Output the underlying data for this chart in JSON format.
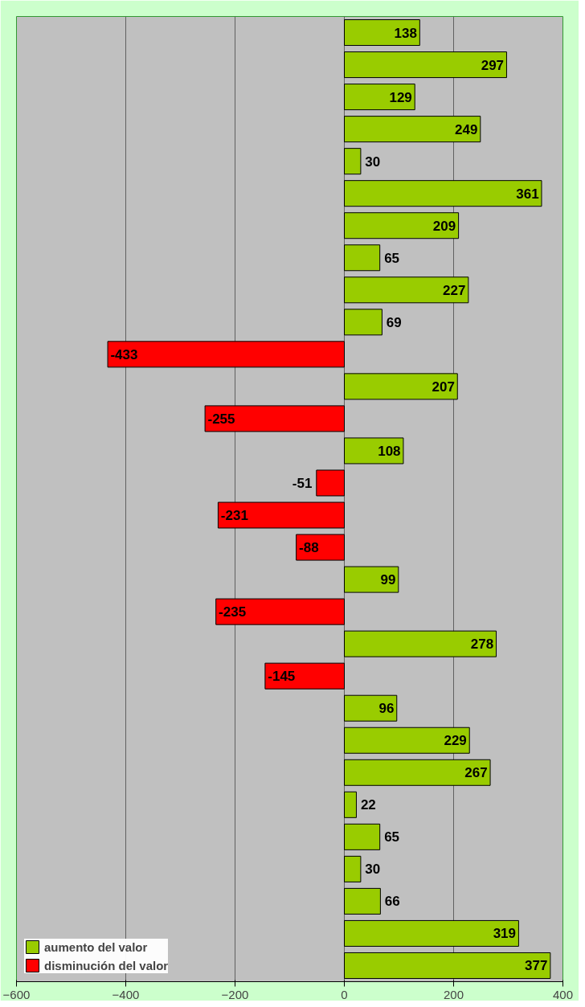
{
  "chart_data": {
    "type": "bar",
    "orientation": "horizontal",
    "data_labels": true,
    "categories": [
      null,
      null,
      null,
      null,
      null,
      null,
      null,
      null,
      null,
      null,
      null,
      null,
      null,
      null,
      null,
      null,
      null,
      null,
      null,
      null,
      null,
      null,
      null,
      null,
      null,
      null,
      null,
      null,
      null,
      null
    ],
    "series": [
      {
        "name": "aumento del valor",
        "color": "#99cc00",
        "values": [
          138,
          297,
          129,
          249,
          30,
          361,
          209,
          65,
          227,
          69,
          null,
          207,
          null,
          108,
          null,
          null,
          null,
          99,
          null,
          278,
          null,
          96,
          229,
          267,
          22,
          65,
          30,
          66,
          319,
          377
        ]
      },
      {
        "name": "disminución del valor",
        "color": "#ff0000",
        "values": [
          null,
          null,
          null,
          null,
          null,
          null,
          null,
          null,
          null,
          null,
          -433,
          null,
          -255,
          null,
          -51,
          -231,
          -88,
          null,
          -235,
          null,
          -145,
          null,
          null,
          null,
          null,
          null,
          null,
          null,
          null,
          null
        ]
      }
    ],
    "xlim": [
      -600,
      400
    ],
    "xticks": [
      -600,
      -400,
      -200,
      0,
      200,
      400
    ],
    "grid": "x",
    "legend": "bottom left"
  }
}
